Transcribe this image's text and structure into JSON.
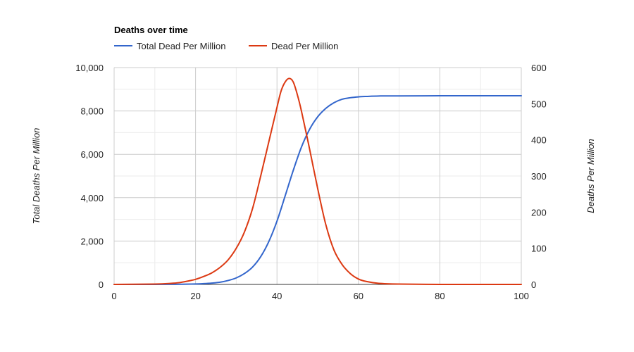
{
  "chart_data": {
    "type": "line",
    "title": "Deaths over time",
    "legend_position": "top-left",
    "grid": true,
    "x_axis": {
      "range": [
        0,
        100
      ],
      "ticks": [
        "0",
        "20",
        "40",
        "60",
        "80",
        "100"
      ],
      "tick_values": [
        0,
        20,
        40,
        60,
        80,
        100
      ]
    },
    "y_left": {
      "label": "Total Deaths Per Million",
      "range": [
        0,
        10000
      ],
      "ticks": [
        "0",
        "2,000",
        "4,000",
        "6,000",
        "8,000",
        "10,000"
      ],
      "tick_values": [
        0,
        2000,
        4000,
        6000,
        8000,
        10000
      ]
    },
    "y_right": {
      "label": "Deaths Per Million",
      "range": [
        0,
        600
      ],
      "ticks": [
        "0",
        "100",
        "200",
        "300",
        "400",
        "500",
        "600"
      ],
      "tick_values": [
        0,
        100,
        200,
        300,
        400,
        500,
        600
      ]
    },
    "series": [
      {
        "name": "Total Dead Per Million",
        "axis": "left",
        "color": "#3366cc",
        "x": [
          0,
          10,
          15,
          20,
          22,
          24,
          26,
          28,
          30,
          32,
          34,
          36,
          38,
          40,
          42,
          44,
          46,
          48,
          50,
          52,
          54,
          56,
          58,
          60,
          62,
          65,
          70,
          80,
          90,
          100
        ],
        "y": [
          0,
          0,
          5,
          20,
          35,
          60,
          100,
          180,
          300,
          500,
          800,
          1280,
          1980,
          2920,
          4080,
          5260,
          6330,
          7150,
          7730,
          8120,
          8380,
          8540,
          8610,
          8650,
          8670,
          8690,
          8695,
          8700,
          8700,
          8700
        ]
      },
      {
        "name": "Dead Per Million",
        "axis": "right",
        "color": "#dc3912",
        "x": [
          0,
          10,
          14,
          16,
          18,
          20,
          22,
          24,
          26,
          28,
          30,
          32,
          34,
          36,
          38,
          40,
          41,
          42,
          43,
          44,
          45,
          46,
          48,
          50,
          52,
          54,
          56,
          58,
          60,
          62,
          65,
          70,
          80,
          90,
          100
        ],
        "y": [
          0,
          1,
          3,
          5,
          9,
          14,
          22,
          32,
          47,
          68,
          100,
          145,
          210,
          300,
          395,
          490,
          535,
          560,
          570,
          560,
          525,
          480,
          375,
          265,
          165,
          95,
          55,
          30,
          15,
          8,
          3,
          1,
          0,
          0,
          0
        ]
      }
    ]
  }
}
